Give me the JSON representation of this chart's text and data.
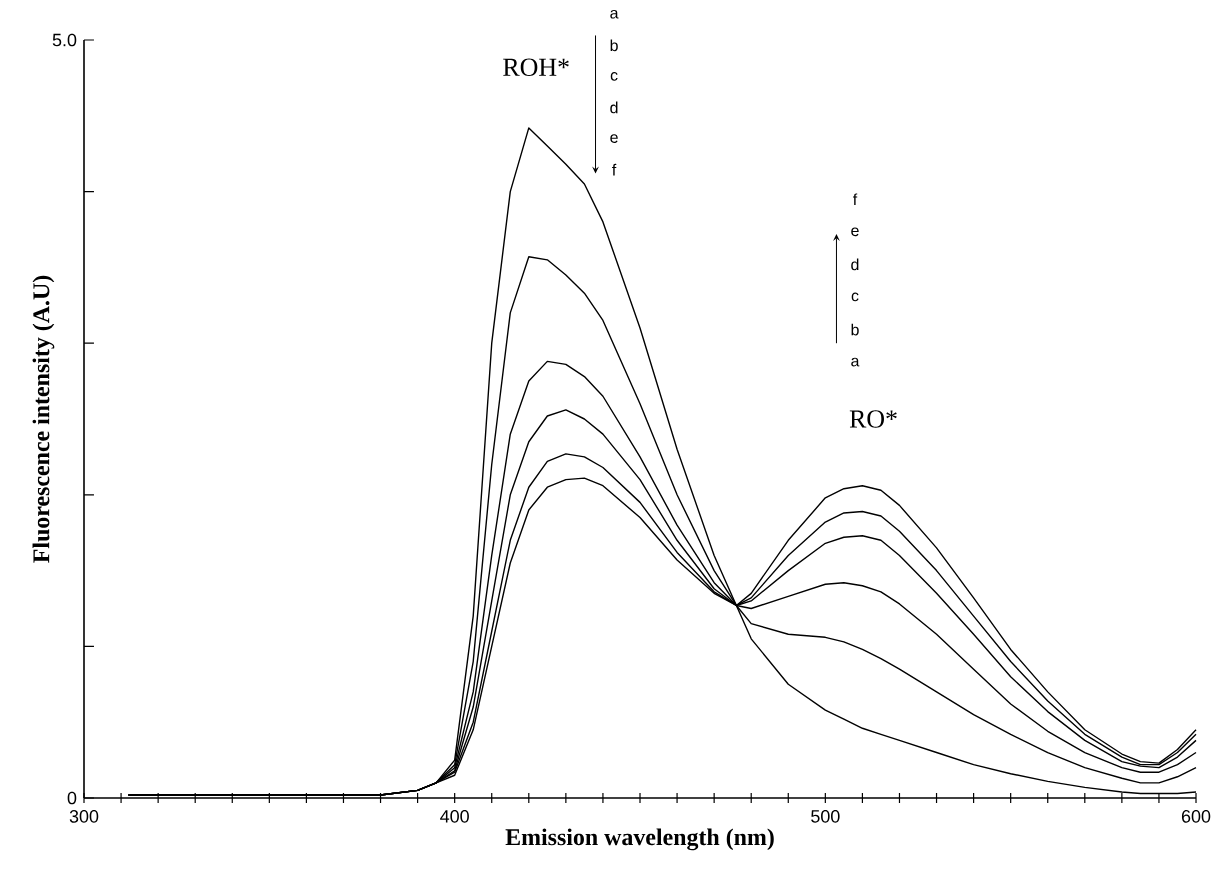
{
  "chart_data": {
    "type": "line",
    "xlabel": "Emission wavelength (nm)",
    "ylabel": "Fluorescence intensity (A.U)",
    "x": [
      312,
      320,
      330,
      340,
      350,
      360,
      370,
      380,
      390,
      395,
      400,
      405,
      410,
      415,
      420,
      425,
      430,
      435,
      440,
      450,
      460,
      470,
      476,
      480,
      490,
      500,
      505,
      510,
      515,
      520,
      530,
      540,
      550,
      560,
      570,
      580,
      585,
      590,
      595,
      600
    ],
    "series": [
      {
        "color": "#000000",
        "values": [
          0.02,
          0.02,
          0.02,
          0.02,
          0.02,
          0.02,
          0.02,
          0.02,
          0.05,
          0.1,
          0.25,
          1.2,
          3.0,
          4.0,
          4.42,
          4.3,
          4.18,
          4.05,
          3.8,
          3.1,
          2.3,
          1.6,
          1.27,
          1.05,
          0.75,
          0.58,
          0.52,
          0.46,
          0.42,
          0.38,
          0.3,
          0.22,
          0.16,
          0.11,
          0.07,
          0.04,
          0.03,
          0.03,
          0.03,
          0.04
        ]
      },
      {
        "color": "#000000",
        "values": [
          0.02,
          0.02,
          0.02,
          0.02,
          0.02,
          0.02,
          0.02,
          0.02,
          0.05,
          0.1,
          0.22,
          0.9,
          2.2,
          3.2,
          3.57,
          3.55,
          3.45,
          3.33,
          3.15,
          2.6,
          2.0,
          1.5,
          1.27,
          1.15,
          1.08,
          1.06,
          1.03,
          0.98,
          0.92,
          0.85,
          0.7,
          0.55,
          0.42,
          0.3,
          0.2,
          0.13,
          0.1,
          0.1,
          0.14,
          0.2
        ]
      },
      {
        "color": "#000000",
        "values": [
          0.02,
          0.02,
          0.02,
          0.02,
          0.02,
          0.02,
          0.02,
          0.02,
          0.05,
          0.1,
          0.2,
          0.7,
          1.6,
          2.4,
          2.75,
          2.88,
          2.86,
          2.78,
          2.65,
          2.25,
          1.8,
          1.42,
          1.27,
          1.25,
          1.33,
          1.41,
          1.42,
          1.4,
          1.36,
          1.28,
          1.08,
          0.85,
          0.62,
          0.44,
          0.3,
          0.2,
          0.17,
          0.17,
          0.22,
          0.3
        ]
      },
      {
        "color": "#000000",
        "values": [
          0.02,
          0.02,
          0.02,
          0.02,
          0.02,
          0.02,
          0.02,
          0.02,
          0.05,
          0.1,
          0.18,
          0.6,
          1.3,
          2.0,
          2.35,
          2.52,
          2.56,
          2.5,
          2.4,
          2.1,
          1.7,
          1.38,
          1.27,
          1.3,
          1.5,
          1.68,
          1.72,
          1.73,
          1.7,
          1.6,
          1.35,
          1.08,
          0.8,
          0.57,
          0.38,
          0.24,
          0.21,
          0.2,
          0.27,
          0.38
        ]
      },
      {
        "color": "#000000",
        "values": [
          0.02,
          0.02,
          0.02,
          0.02,
          0.02,
          0.02,
          0.02,
          0.02,
          0.05,
          0.1,
          0.17,
          0.5,
          1.1,
          1.7,
          2.05,
          2.22,
          2.27,
          2.25,
          2.18,
          1.95,
          1.62,
          1.36,
          1.27,
          1.32,
          1.6,
          1.82,
          1.88,
          1.89,
          1.86,
          1.76,
          1.5,
          1.2,
          0.9,
          0.64,
          0.42,
          0.27,
          0.22,
          0.22,
          0.3,
          0.42
        ]
      },
      {
        "color": "#000000",
        "values": [
          0.02,
          0.02,
          0.02,
          0.02,
          0.02,
          0.02,
          0.02,
          0.02,
          0.05,
          0.1,
          0.15,
          0.45,
          1.0,
          1.55,
          1.9,
          2.05,
          2.1,
          2.11,
          2.06,
          1.85,
          1.57,
          1.35,
          1.27,
          1.35,
          1.7,
          1.98,
          2.04,
          2.06,
          2.03,
          1.93,
          1.65,
          1.32,
          0.98,
          0.7,
          0.45,
          0.29,
          0.24,
          0.23,
          0.32,
          0.45
        ]
      }
    ],
    "xlim": [
      300,
      600
    ],
    "ylim": [
      0,
      5
    ],
    "xticks": [
      300,
      {
        "value": 310,
        "label": null
      },
      {
        "value": 320,
        "label": null
      },
      {
        "value": 330,
        "label": null
      },
      {
        "value": 340,
        "label": null
      },
      {
        "value": 350,
        "label": null
      },
      {
        "value": 360,
        "label": null
      },
      {
        "value": 370,
        "label": null
      },
      {
        "value": 380,
        "label": null
      },
      {
        "value": 390,
        "label": null
      },
      400,
      {
        "value": 410,
        "label": null
      },
      {
        "value": 420,
        "label": null
      },
      {
        "value": 430,
        "label": null
      },
      {
        "value": 440,
        "label": null
      },
      {
        "value": 450,
        "label": null
      },
      {
        "value": 460,
        "label": null
      },
      {
        "value": 470,
        "label": null
      },
      {
        "value": 480,
        "label": null
      },
      {
        "value": 490,
        "label": null
      },
      500,
      {
        "value": 510,
        "label": null
      },
      {
        "value": 520,
        "label": null
      },
      {
        "value": 530,
        "label": null
      },
      {
        "value": 540,
        "label": null
      },
      {
        "value": 550,
        "label": null
      },
      {
        "value": 560,
        "label": null
      },
      {
        "value": 570,
        "label": null
      },
      {
        "value": 580,
        "label": null
      },
      {
        "value": 590,
        "label": null
      },
      600
    ],
    "yticks": [
      0,
      {
        "value": 1,
        "label": null
      },
      {
        "value": 2,
        "label": null
      },
      {
        "value": 3,
        "label": null
      },
      {
        "value": 4,
        "label": null
      },
      {
        "value": 5,
        "label": "5.0"
      }
    ],
    "annotations": [
      "ROH*",
      "RO*",
      "a",
      "b",
      "c",
      "d",
      "e",
      "f",
      "f",
      "e",
      "d",
      "c",
      "b",
      "a"
    ],
    "marker": "none",
    "line_style": "solid"
  }
}
